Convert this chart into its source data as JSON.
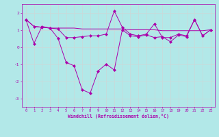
{
  "xlabel": "Windchill (Refroidissement éolien,°C)",
  "background_color": "#b2e8e8",
  "grid_color": "#c8dada",
  "line_color": "#aa00aa",
  "xlim": [
    -0.5,
    23.5
  ],
  "ylim": [
    -3.5,
    2.5
  ],
  "yticks": [
    -3,
    -2,
    -1,
    0,
    1,
    2
  ],
  "xticks": [
    0,
    1,
    2,
    3,
    4,
    5,
    6,
    7,
    8,
    9,
    10,
    11,
    12,
    13,
    14,
    15,
    16,
    17,
    18,
    19,
    20,
    21,
    22,
    23
  ],
  "curve1_x": [
    0,
    1,
    2,
    3,
    4,
    5,
    6,
    7,
    8,
    9,
    10,
    11,
    12,
    13,
    14,
    15,
    16,
    17,
    18,
    19,
    20,
    21,
    22,
    23
  ],
  "curve1_y": [
    1.6,
    0.2,
    1.2,
    1.1,
    0.5,
    -0.9,
    -1.1,
    -2.5,
    -2.7,
    -1.4,
    -1.0,
    -1.35,
    1.0,
    0.65,
    0.6,
    0.7,
    0.55,
    0.6,
    0.3,
    0.7,
    0.6,
    1.6,
    0.65,
    1.0
  ],
  "curve2_x": [
    0,
    1,
    2,
    3,
    4,
    5,
    6,
    7,
    8,
    9,
    10,
    11,
    12,
    13,
    14,
    15,
    16,
    17,
    18,
    19,
    20,
    21,
    22,
    23
  ],
  "curve2_y": [
    1.6,
    1.2,
    1.15,
    1.1,
    1.05,
    0.55,
    0.55,
    0.6,
    0.65,
    0.65,
    0.75,
    2.1,
    1.15,
    0.75,
    0.65,
    0.75,
    1.35,
    0.55,
    0.55,
    0.75,
    0.65,
    1.6,
    0.65,
    1.0
  ],
  "curve3_x": [
    0,
    1,
    2,
    3,
    4,
    5,
    6,
    7,
    8,
    9,
    10,
    11,
    12,
    13,
    14,
    15,
    16,
    17,
    18,
    19,
    20,
    21,
    22,
    23
  ],
  "curve3_y": [
    1.6,
    1.2,
    1.15,
    1.1,
    1.1,
    1.1,
    1.1,
    1.05,
    1.05,
    1.05,
    1.05,
    1.05,
    1.05,
    1.0,
    1.0,
    1.0,
    1.0,
    0.95,
    0.95,
    0.95,
    0.95,
    0.95,
    0.95,
    1.0
  ]
}
